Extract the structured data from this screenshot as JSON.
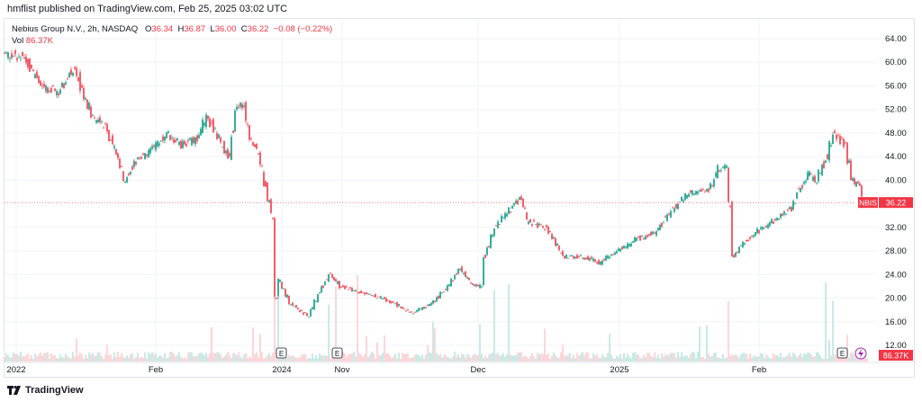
{
  "publisher": "hmflist published on TradingView.com, Feb 25, 2025 03:02 UTC",
  "legend": {
    "symbol": "Nebius Group N.V., 2h, NASDAQ",
    "o_label": "O",
    "o": "36.34",
    "h_label": "H",
    "h": "36.87",
    "l_label": "L",
    "l": "36.00",
    "c_label": "C",
    "c": "36.22",
    "change": "−0.08 (−0.22%)",
    "vol_label": "Vol",
    "vol": "86.37K"
  },
  "price_axis": [
    "64.00",
    "60.00",
    "56.00",
    "52.00",
    "48.00",
    "44.00",
    "40.00",
    "32.00",
    "28.00",
    "24.00",
    "20.00",
    "16.00",
    "12.00"
  ],
  "price_range": [
    10.5,
    66
  ],
  "time_axis": [
    "2022",
    "Feb",
    "2024",
    "Nov",
    "Dec",
    "2025",
    "Feb"
  ],
  "ticker_label": "NBIS",
  "last_price": "36.22",
  "last_price_value": 36.22,
  "volume_badge": "86.37K",
  "earnings_marker": "E",
  "colors": {
    "up": "#089981",
    "down": "#f23645",
    "up_vol": "#a6ddd4",
    "down_vol": "#f9bcc0",
    "grid": "#f0f3fa"
  },
  "footer": "TradingView",
  "chart_data": {
    "type": "candlestick",
    "path": [
      [
        0,
        61.5
      ],
      [
        5,
        61
      ],
      [
        10,
        56
      ],
      [
        15,
        55
      ],
      [
        19,
        59
      ],
      [
        21,
        56
      ],
      [
        24,
        51
      ],
      [
        28,
        49
      ],
      [
        31,
        44
      ],
      [
        33,
        40
      ],
      [
        36,
        43
      ],
      [
        40,
        45
      ],
      [
        45,
        48
      ],
      [
        49,
        46
      ],
      [
        53,
        47
      ],
      [
        56,
        51
      ],
      [
        60,
        46
      ],
      [
        62,
        44
      ],
      [
        64,
        52
      ],
      [
        66,
        53
      ],
      [
        68,
        47
      ],
      [
        70,
        45
      ],
      [
        71,
        42
      ],
      [
        74,
        34
      ],
      [
        75,
        20
      ],
      [
        76,
        23
      ],
      [
        79,
        19
      ],
      [
        84,
        17
      ],
      [
        88,
        22
      ],
      [
        90,
        24
      ],
      [
        93,
        22
      ],
      [
        98,
        21
      ],
      [
        105,
        20
      ],
      [
        113,
        17.5
      ],
      [
        118,
        19
      ],
      [
        123,
        22
      ],
      [
        126,
        25
      ],
      [
        130,
        22
      ],
      [
        132,
        22
      ],
      [
        133,
        27
      ],
      [
        136,
        32
      ],
      [
        140,
        35
      ],
      [
        143,
        37
      ],
      [
        145,
        33
      ],
      [
        150,
        32
      ],
      [
        155,
        27
      ],
      [
        160,
        27
      ],
      [
        165,
        26
      ],
      [
        170,
        28
      ],
      [
        175,
        30
      ],
      [
        180,
        31
      ],
      [
        185,
        35
      ],
      [
        190,
        38
      ],
      [
        195,
        38
      ],
      [
        198,
        42
      ],
      [
        200,
        42
      ],
      [
        201,
        36
      ],
      [
        202,
        27
      ],
      [
        204,
        29
      ],
      [
        208,
        31
      ],
      [
        213,
        33
      ],
      [
        218,
        35
      ],
      [
        220,
        38
      ],
      [
        223,
        41
      ],
      [
        225,
        40
      ],
      [
        228,
        44
      ],
      [
        230,
        48
      ],
      [
        233,
        46
      ],
      [
        235,
        40
      ],
      [
        237,
        39
      ],
      [
        238,
        37
      ],
      [
        239,
        36.22
      ]
    ]
  }
}
